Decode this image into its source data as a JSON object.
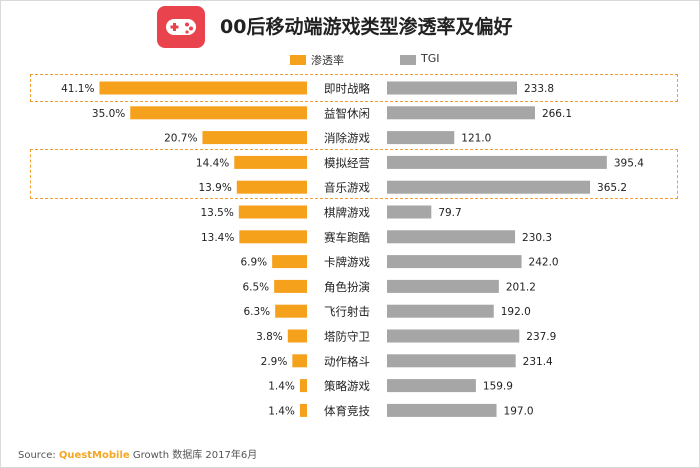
{
  "header": {
    "title": "00后移动端游戏类型渗透率及偏好",
    "icon": "gamepad-icon",
    "icon_color": "#e9434d"
  },
  "legend": {
    "penetration": "渗透率",
    "tgi": "TGI"
  },
  "colors": {
    "penetration": "#f5a11c",
    "tgi": "#a6a6a6",
    "highlight_border": "#f0a030"
  },
  "chart_data": {
    "type": "bar",
    "title": "00后移动端游戏类型渗透率及偏好",
    "categories": [
      "即时战略",
      "益智休闲",
      "消除游戏",
      "模拟经营",
      "音乐游戏",
      "棋牌游戏",
      "赛车跑酷",
      "卡牌游戏",
      "角色扮演",
      "飞行射击",
      "塔防守卫",
      "动作格斗",
      "策略游戏",
      "体育竞技"
    ],
    "series": [
      {
        "name": "渗透率",
        "values": [
          41.1,
          35.0,
          20.7,
          14.4,
          13.9,
          13.5,
          13.4,
          6.9,
          6.5,
          6.3,
          3.8,
          2.9,
          1.4,
          1.4
        ],
        "labels": [
          "41.1%",
          "35.0%",
          "20.7%",
          "14.4%",
          "13.9%",
          "13.5%",
          "13.4%",
          "6.9%",
          "6.5%",
          "6.3%",
          "3.8%",
          "2.9%",
          "1.4%",
          "1.4%"
        ],
        "direction": "left"
      },
      {
        "name": "TGI",
        "values": [
          233.8,
          266.1,
          121.0,
          395.4,
          365.2,
          79.7,
          230.3,
          242.0,
          201.2,
          192.0,
          237.9,
          231.4,
          159.9,
          197.0
        ],
        "labels": [
          "233.8",
          "266.1",
          "121.0",
          "395.4",
          "365.2",
          "79.7",
          "230.3",
          "242.0",
          "201.2",
          "192.0",
          "237.9",
          "231.4",
          "159.9",
          "197.0"
        ],
        "direction": "right"
      }
    ],
    "highlighted_groups": [
      [
        "即时战略"
      ],
      [
        "模拟经营",
        "音乐游戏"
      ]
    ]
  },
  "source": {
    "prefix": "Source: ",
    "brand": "QuestMobile",
    "suffix": " Growth 数据库 2017年6月"
  }
}
